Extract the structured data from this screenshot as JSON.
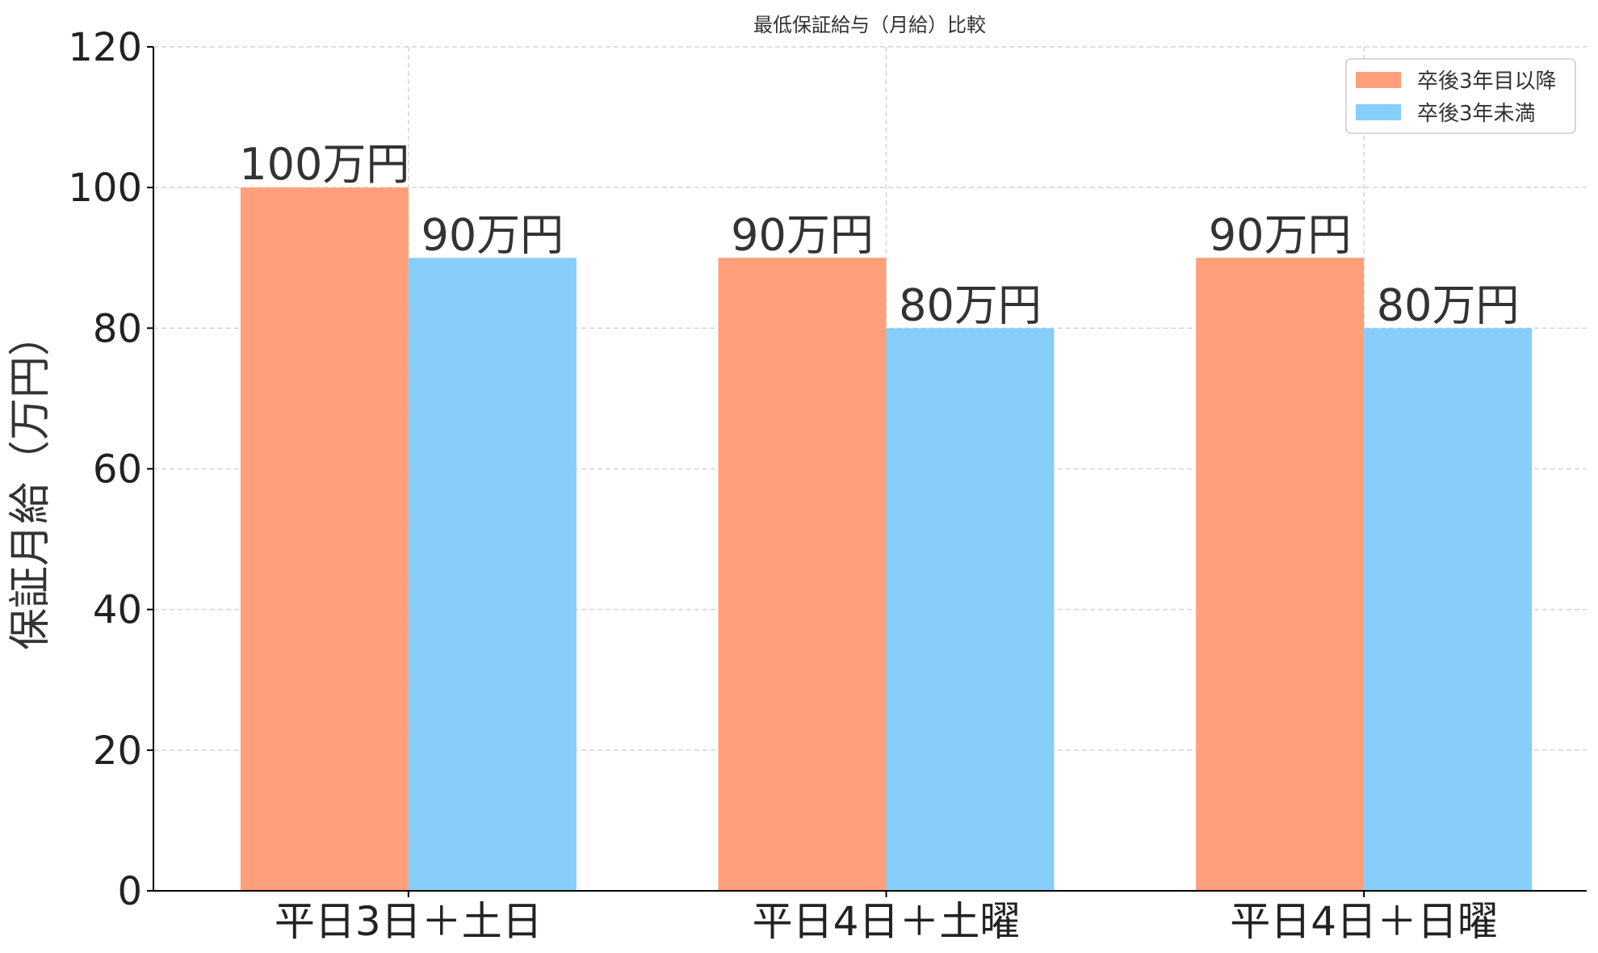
{
  "chart_data": {
    "type": "bar",
    "title": "最低保証給与（月給）比較",
    "xlabel": "",
    "ylabel": "保証月給（万円）",
    "categories": [
      "平日3日＋土日",
      "平日4日＋土曜",
      "平日4日＋日曜"
    ],
    "series": [
      {
        "name": "卒後3年目以降",
        "values": [
          100,
          90,
          90
        ],
        "labels": [
          "100万円",
          "90万円",
          "90万円"
        ],
        "color": "#FFA07A"
      },
      {
        "name": "卒後3年未満",
        "values": [
          90,
          80,
          80
        ],
        "labels": [
          "90万円",
          "80万円",
          "80万円"
        ],
        "color": "#87CEFA"
      }
    ],
    "ylim": [
      0,
      120
    ],
    "yticks": [
      0,
      20,
      40,
      60,
      80,
      100,
      120
    ],
    "grid": true,
    "legend_position": "top-right"
  }
}
